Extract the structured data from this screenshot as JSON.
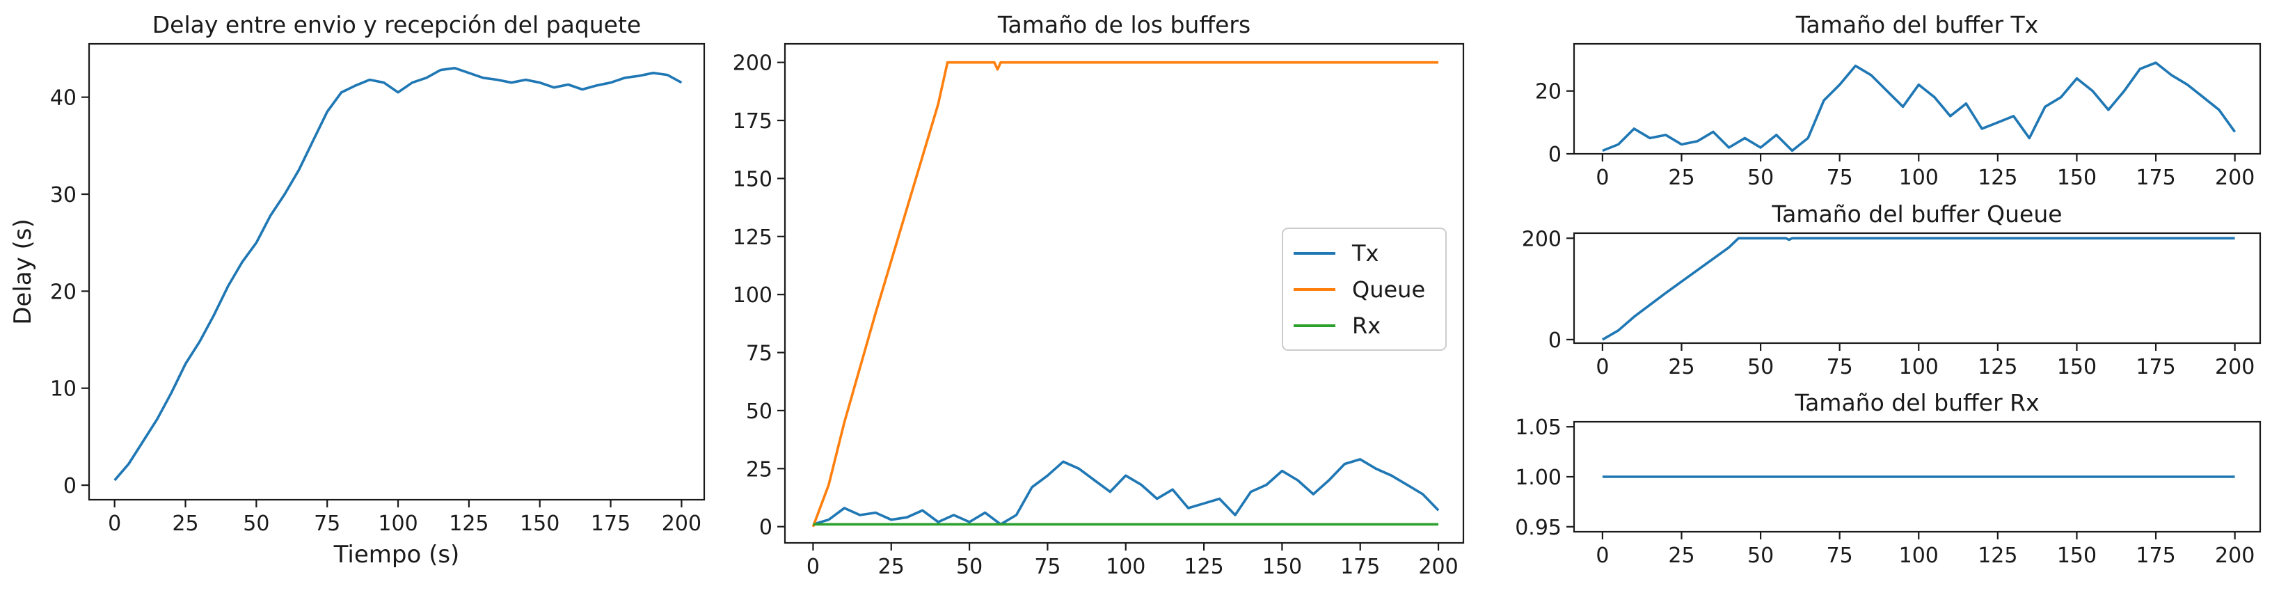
{
  "colors": {
    "Tx": "#1f77b4",
    "Queue": "#ff7f0e",
    "Rx": "#2ca02c"
  },
  "chart_data": [
    {
      "id": "delay",
      "type": "line",
      "title": "Delay entre envio y recepción del paquete",
      "xlabel": "Tiempo (s)",
      "ylabel": "Delay (s)",
      "xlim": [
        -9,
        208
      ],
      "ylim": [
        -1.5,
        45.5
      ],
      "xticks": [
        0,
        25,
        50,
        75,
        100,
        125,
        150,
        175,
        200
      ],
      "yticks": [
        0,
        10,
        20,
        30,
        40
      ],
      "grid": false,
      "series": [
        {
          "color": "#1f77b4",
          "x": [
            0,
            5,
            10,
            15,
            20,
            25,
            30,
            35,
            40,
            45,
            50,
            55,
            60,
            65,
            70,
            75,
            80,
            85,
            90,
            95,
            100,
            105,
            110,
            115,
            120,
            125,
            130,
            135,
            140,
            145,
            150,
            155,
            160,
            165,
            170,
            175,
            180,
            185,
            190,
            195,
            200
          ],
          "y": [
            0.5,
            2.2,
            4.5,
            6.8,
            9.5,
            12.5,
            14.8,
            17.5,
            20.5,
            23.0,
            25.0,
            27.8,
            30.0,
            32.5,
            35.5,
            38.5,
            40.5,
            41.2,
            41.8,
            41.5,
            40.5,
            41.5,
            42.0,
            42.8,
            43.0,
            42.5,
            42.0,
            41.8,
            41.5,
            41.8,
            41.5,
            41.0,
            41.3,
            40.8,
            41.2,
            41.5,
            42.0,
            42.2,
            42.5,
            42.3,
            41.5
          ]
        }
      ]
    },
    {
      "id": "buffers",
      "type": "line",
      "title": "Tamaño de los buffers",
      "xlim": [
        -9,
        208
      ],
      "ylim": [
        -7,
        208
      ],
      "xticks": [
        0,
        25,
        50,
        75,
        100,
        125,
        150,
        175,
        200
      ],
      "yticks": [
        0,
        25,
        50,
        75,
        100,
        125,
        150,
        175,
        200
      ],
      "grid": false,
      "legend": "center-right",
      "series": [
        {
          "name": "Tx",
          "color": "#1f77b4",
          "x": [
            0,
            5,
            10,
            15,
            20,
            25,
            30,
            35,
            40,
            45,
            50,
            55,
            60,
            65,
            70,
            75,
            80,
            85,
            90,
            95,
            100,
            105,
            110,
            115,
            120,
            125,
            130,
            135,
            140,
            145,
            150,
            155,
            160,
            165,
            170,
            175,
            180,
            185,
            190,
            195,
            200
          ],
          "y": [
            1,
            3,
            8,
            5,
            6,
            3,
            4,
            7,
            2,
            5,
            2,
            6,
            1,
            5,
            17,
            22,
            28,
            25,
            20,
            15,
            22,
            18,
            12,
            16,
            8,
            10,
            12,
            5,
            15,
            18,
            24,
            20,
            14,
            20,
            27,
            29,
            25,
            22,
            18,
            14,
            7
          ]
        },
        {
          "name": "Queue",
          "color": "#ff7f0e",
          "x": [
            0,
            5,
            10,
            20,
            30,
            40,
            43,
            58,
            59,
            60,
            200
          ],
          "y": [
            0,
            18,
            45,
            92,
            137,
            182,
            200,
            200,
            197,
            200,
            200
          ]
        },
        {
          "name": "Rx",
          "color": "#2ca02c",
          "x": [
            0,
            200
          ],
          "y": [
            1,
            1
          ]
        }
      ]
    },
    {
      "id": "tx",
      "type": "line",
      "title": "Tamaño del buffer Tx",
      "xlim": [
        -9,
        208
      ],
      "ylim": [
        0,
        35
      ],
      "xticks": [
        0,
        25,
        50,
        75,
        100,
        125,
        150,
        175,
        200
      ],
      "yticks": [
        0,
        20
      ],
      "grid": false,
      "series": [
        {
          "color": "#1f77b4",
          "x": [
            0,
            5,
            10,
            15,
            20,
            25,
            30,
            35,
            40,
            45,
            50,
            55,
            60,
            65,
            70,
            75,
            80,
            85,
            90,
            95,
            100,
            105,
            110,
            115,
            120,
            125,
            130,
            135,
            140,
            145,
            150,
            155,
            160,
            165,
            170,
            175,
            180,
            185,
            190,
            195,
            200
          ],
          "y": [
            1,
            3,
            8,
            5,
            6,
            3,
            4,
            7,
            2,
            5,
            2,
            6,
            1,
            5,
            17,
            22,
            28,
            25,
            20,
            15,
            22,
            18,
            12,
            16,
            8,
            10,
            12,
            5,
            15,
            18,
            24,
            20,
            14,
            20,
            27,
            29,
            25,
            22,
            18,
            14,
            7
          ]
        }
      ]
    },
    {
      "id": "queue",
      "type": "line",
      "title": "Tamaño del buffer Queue",
      "xlim": [
        -9,
        208
      ],
      "ylim": [
        -7,
        210
      ],
      "xticks": [
        0,
        25,
        50,
        75,
        100,
        125,
        150,
        175,
        200
      ],
      "yticks": [
        0,
        200
      ],
      "grid": false,
      "series": [
        {
          "color": "#1f77b4",
          "x": [
            0,
            5,
            10,
            20,
            30,
            40,
            43,
            58,
            59,
            60,
            200
          ],
          "y": [
            0,
            18,
            45,
            92,
            137,
            182,
            200,
            200,
            197,
            200,
            200
          ]
        }
      ]
    },
    {
      "id": "rx",
      "type": "line",
      "title": "Tamaño del buffer Rx",
      "xlim": [
        -9,
        208
      ],
      "ylim": [
        0.945,
        1.055
      ],
      "xticks": [
        0,
        25,
        50,
        75,
        100,
        125,
        150,
        175,
        200
      ],
      "yticks": [
        0.95,
        1.0,
        1.05
      ],
      "ytick_labels": [
        "0.95",
        "1.00",
        "1.05"
      ],
      "grid": false,
      "series": [
        {
          "color": "#1f77b4",
          "x": [
            0,
            200
          ],
          "y": [
            1,
            1
          ]
        }
      ]
    }
  ]
}
